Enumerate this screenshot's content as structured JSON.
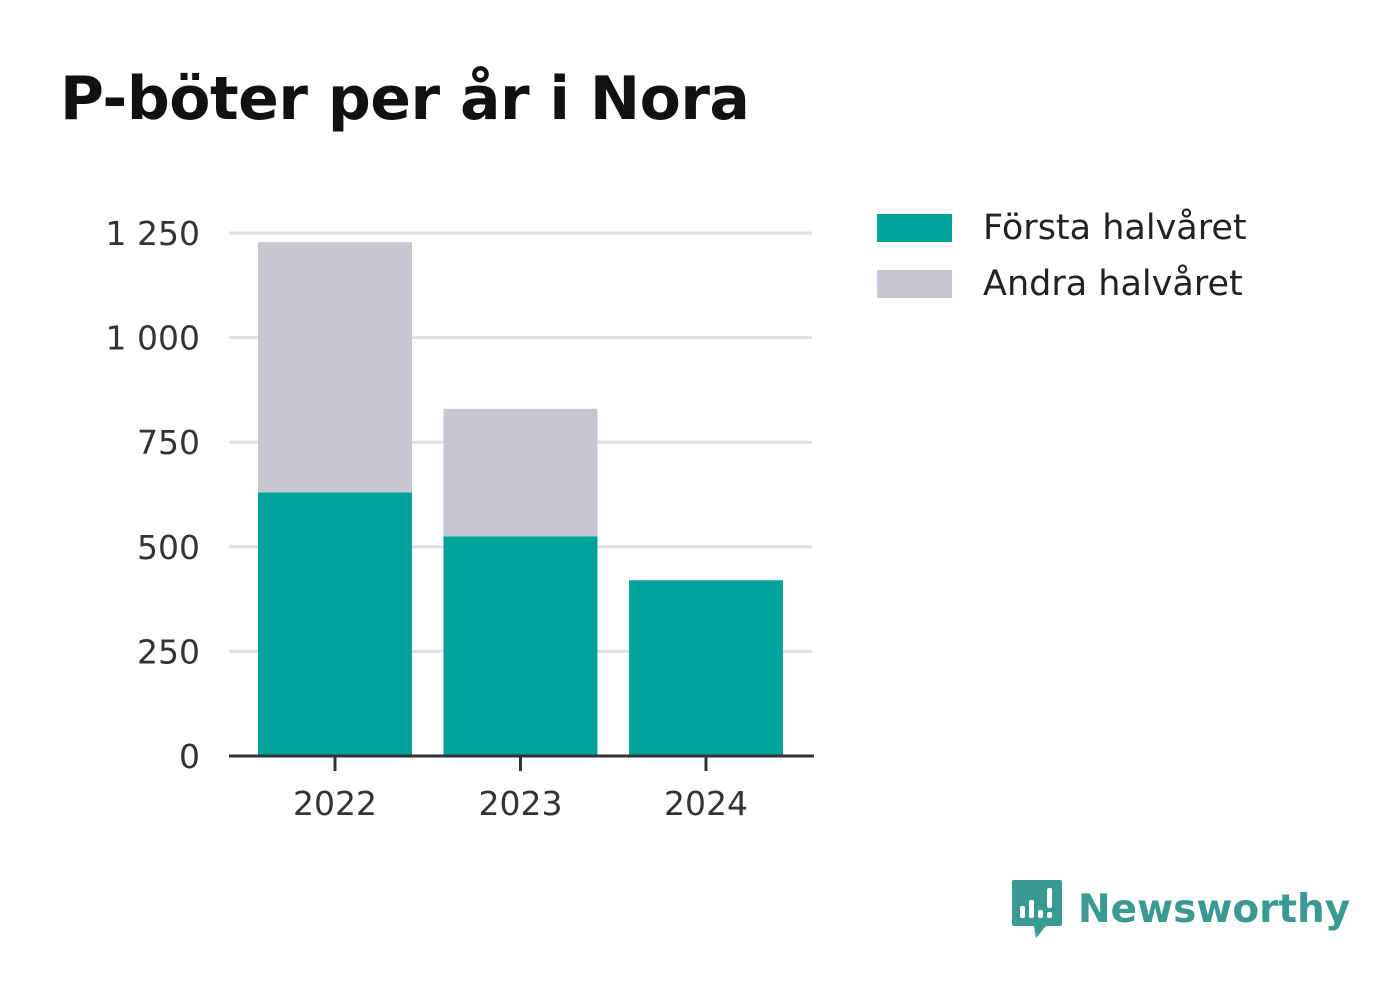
{
  "colors": {
    "first_half": "#00a39a",
    "second_half": "#c8c7d1",
    "grid": "#e0e0e0",
    "axis": "#333333",
    "brand": "#3a9a93"
  },
  "chart_data": {
    "type": "bar",
    "stacked": true,
    "title": "P-böter per år i Nora",
    "categories": [
      "2022",
      "2023",
      "2024"
    ],
    "series": [
      {
        "name": "Första halvåret",
        "values": [
          630,
          525,
          420
        ]
      },
      {
        "name": "Andra halvåret",
        "values": [
          598,
          305,
          0
        ]
      }
    ],
    "ylim": [
      0,
      1250
    ],
    "yticks": [
      0,
      250,
      500,
      750,
      1000,
      1250
    ],
    "ytick_labels": [
      "0",
      "250",
      "500",
      "750",
      "1 000",
      "1 250"
    ],
    "xlabel": "",
    "ylabel": "",
    "grid": true,
    "legend_position": "right"
  },
  "brand": {
    "name": "Newsworthy",
    "icon": "bar-chart-speech-bubble-icon"
  }
}
